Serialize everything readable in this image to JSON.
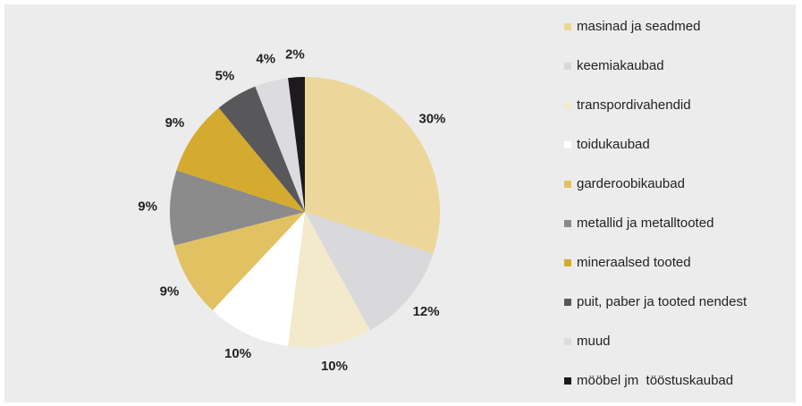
{
  "chart_data": {
    "type": "pie",
    "categories": [
      "masinad ja seadmed",
      "keemiakaubad",
      "transpordivahendid",
      "toidukaubad",
      "garderoobikaubad",
      "metallid ja metalltooted",
      "mineraalsed tooted",
      "puit, paber ja tooted nendest",
      "muud",
      "mööbel jm  tööstuskaubad"
    ],
    "values": [
      30,
      12,
      10,
      10,
      9,
      9,
      9,
      5,
      4,
      2
    ],
    "value_labels": [
      "30%",
      "12%",
      "10%",
      "10%",
      "9%",
      "9%",
      "9%",
      "5%",
      "4%",
      "2%"
    ],
    "colors": [
      "#edd699",
      "#d9d9db",
      "#f3eacc",
      "#ffffff",
      "#e2c163",
      "#8b8b8c",
      "#d5ab2f",
      "#58585a",
      "#dcdcde",
      "#1c1a1c"
    ],
    "legend": "right"
  }
}
